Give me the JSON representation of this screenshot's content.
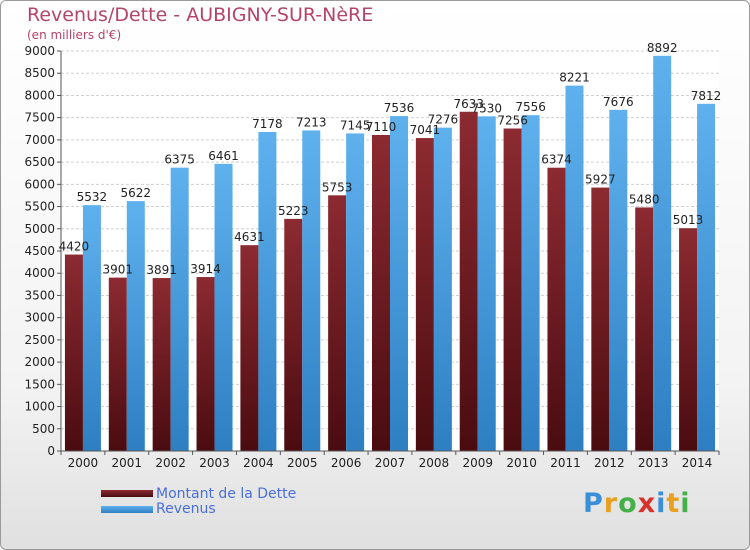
{
  "header": {
    "title": "Revenus/Dette - AUBIGNY-SUR-NèRE",
    "subtitle": "(en milliers d'€)"
  },
  "chart_data": {
    "type": "bar",
    "title": "Revenus/Dette - AUBIGNY-SUR-NèRE",
    "ylabel": "(en milliers d'€)",
    "xlabel": "",
    "ylim": [
      0,
      9000
    ],
    "yticks": [
      0,
      500,
      1000,
      1500,
      2000,
      2500,
      3000,
      3500,
      4000,
      4500,
      5000,
      5500,
      6000,
      6500,
      7000,
      7500,
      8000,
      8500,
      9000
    ],
    "grid": true,
    "categories": [
      "2000",
      "2001",
      "2002",
      "2003",
      "2004",
      "2005",
      "2006",
      "2007",
      "2008",
      "2009",
      "2010",
      "2011",
      "2012",
      "2013",
      "2014"
    ],
    "series": [
      {
        "name": "Montant de la Dette",
        "color": "#7a1a22",
        "values": [
          4420,
          3901,
          3891,
          3914,
          4631,
          5223,
          5753,
          7110,
          7041,
          7633,
          7256,
          6374,
          5927,
          5480,
          5013
        ],
        "labels": [
          "4420",
          "3901",
          "3891",
          "3914",
          "4631",
          "5223",
          "5753",
          "7110",
          "7041",
          "7633",
          "7256",
          "6374",
          "5927",
          "5480",
          "5013"
        ]
      },
      {
        "name": "Revenus",
        "color": "#4aa3e6",
        "values": [
          5532,
          5622,
          6375,
          6461,
          7178,
          7213,
          7145,
          7536,
          7276,
          7530,
          7556,
          8221,
          7676,
          8892,
          7812
        ],
        "labels": [
          "5532",
          "5622",
          "6375",
          "6461",
          "7178",
          "7213",
          "7145",
          "7536",
          "7276",
          "7530",
          "7556",
          "8221",
          "7676",
          "8892",
          "7812"
        ]
      }
    ],
    "legend": [
      "Montant de la Dette",
      "Revenus"
    ],
    "legend_position": "bottom-left"
  },
  "legend": {
    "debt_label": "Montant de la Dette",
    "revenue_label": "Revenus"
  },
  "logo": {
    "letters": [
      "P",
      "r",
      "o",
      "x",
      "i",
      "t",
      "i"
    ],
    "colors": [
      "#3a8fd9",
      "#e8a020",
      "#45b04a",
      "#d9302c",
      "#3a8fd9",
      "#e8a020",
      "#45b04a"
    ]
  }
}
